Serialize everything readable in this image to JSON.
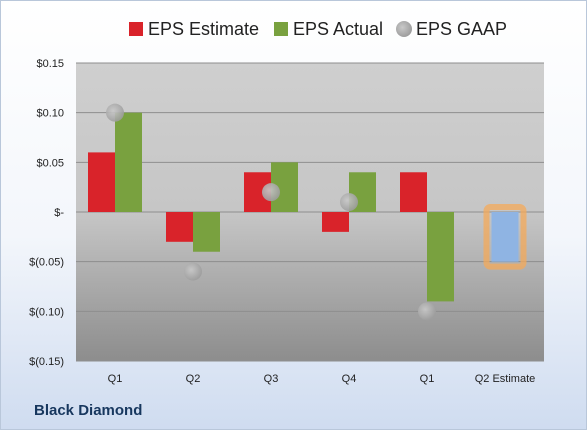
{
  "company": "Black Diamond",
  "colors": {
    "estimate": "#d9232a",
    "actual": "#79a13f",
    "gaap": "#b3b3b3",
    "future_estimate": "#8fb4e3",
    "highlight": "#f4a95a"
  },
  "chart_data": {
    "type": "bar",
    "categories": [
      "Q1",
      "Q2",
      "Q3",
      "Q4",
      "Q1",
      "Q2 Estimate"
    ],
    "series": [
      {
        "name": "EPS Estimate",
        "values": [
          0.06,
          -0.03,
          0.04,
          -0.02,
          0.04,
          -0.05
        ]
      },
      {
        "name": "EPS Actual",
        "values": [
          0.1,
          -0.04,
          0.05,
          0.04,
          -0.09,
          null
        ]
      },
      {
        "name": "EPS GAAP",
        "values": [
          0.1,
          -0.06,
          0.02,
          0.01,
          -0.1,
          null
        ]
      }
    ],
    "y_ticks": [
      "$0.15",
      "$0.10",
      "$0.05",
      "$-",
      "$(0.05)",
      "$(0.10)",
      "$(0.15)"
    ],
    "y_tick_values": [
      0.15,
      0.1,
      0.05,
      0,
      -0.05,
      -0.1,
      -0.15
    ],
    "ylim": [
      -0.15,
      0.15
    ],
    "grid": true,
    "legend_position": "top",
    "highlighted_category": "Q2 Estimate"
  }
}
